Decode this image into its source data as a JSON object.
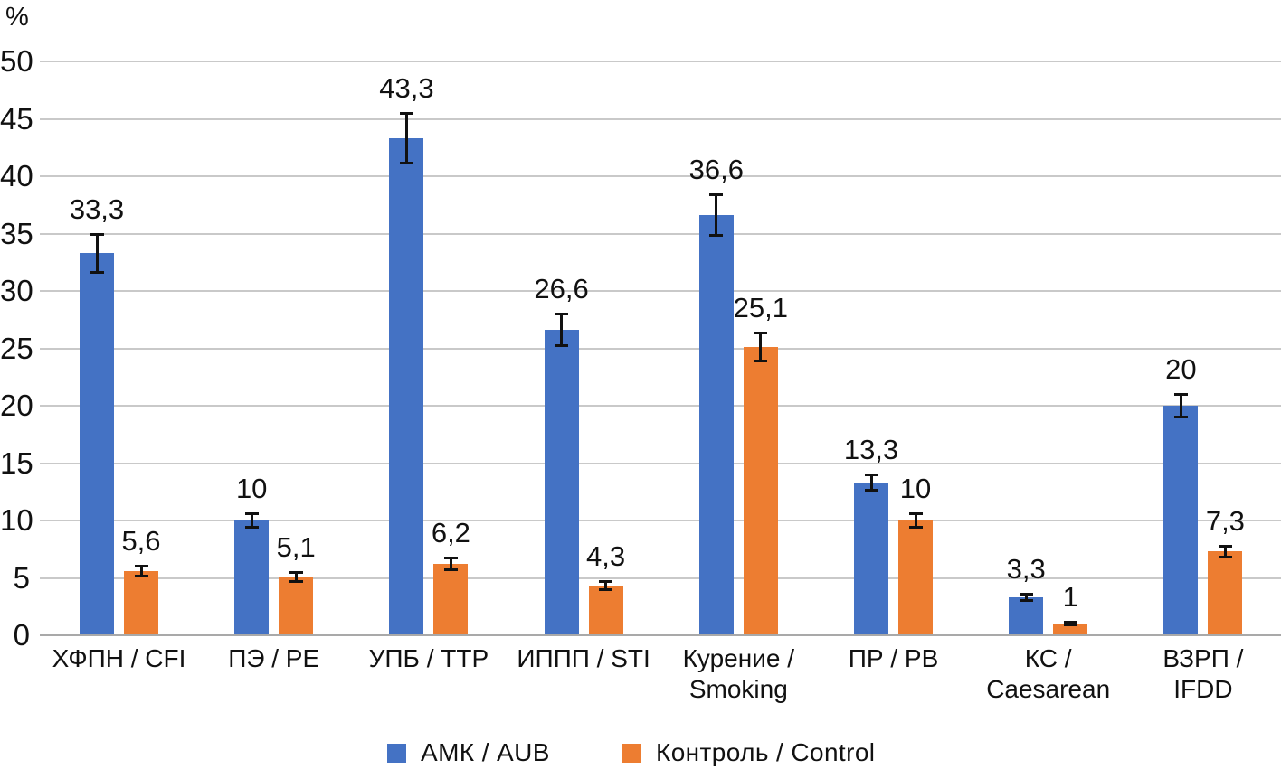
{
  "figure": {
    "unit_label": "%"
  },
  "chart_data": {
    "type": "bar",
    "title": "",
    "xlabel": "",
    "ylabel": "%",
    "ylim": [
      0,
      50
    ],
    "ytick_step": 5,
    "grid": true,
    "legend_position": "bottom",
    "decimal_separator": ",",
    "categories": [
      "ХФПН / CFI",
      "ПЭ / PE",
      "УПБ / TTP",
      "ИППП / STI",
      "Курение / Smoking",
      "ПР / PB",
      "КС / Caesarean",
      "ВЗРП / IFDD"
    ],
    "category_lines": [
      [
        "ХФПН / CFI"
      ],
      [
        "ПЭ / PE"
      ],
      [
        "УПБ / TTP"
      ],
      [
        "ИППП / STI"
      ],
      [
        "Курение /",
        "Smoking"
      ],
      [
        "ПР / PB"
      ],
      [
        "КС /",
        "Caesarean"
      ],
      [
        "ВЗРП /",
        "IFDD"
      ]
    ],
    "series": [
      {
        "name": "АМК / AUB",
        "color": "#4472C4",
        "values": [
          33.3,
          10,
          43.3,
          26.6,
          36.6,
          13.3,
          3.3,
          20
        ],
        "value_labels": [
          "33,3",
          "10",
          "43,3",
          "26,6",
          "36,6",
          "13,3",
          "3,3",
          "20"
        ],
        "errors": [
          1.7,
          0.6,
          2.2,
          1.4,
          1.8,
          0.7,
          0.3,
          1.0
        ]
      },
      {
        "name": "Контроль / Control",
        "color": "#ED7D31",
        "values": [
          5.6,
          5.1,
          6.2,
          4.3,
          25.1,
          10,
          1,
          7.3
        ],
        "value_labels": [
          "5,6",
          "5,1",
          "6,2",
          "4,3",
          "25,1",
          "10",
          "1",
          "7,3"
        ],
        "errors": [
          0.5,
          0.45,
          0.55,
          0.4,
          1.25,
          0.6,
          0.15,
          0.5
        ]
      }
    ]
  },
  "legend": {
    "items": [
      {
        "label": "АМК / AUB",
        "color": "#4472C4"
      },
      {
        "label": "Контроль / Control",
        "color": "#ED7D31"
      }
    ]
  }
}
